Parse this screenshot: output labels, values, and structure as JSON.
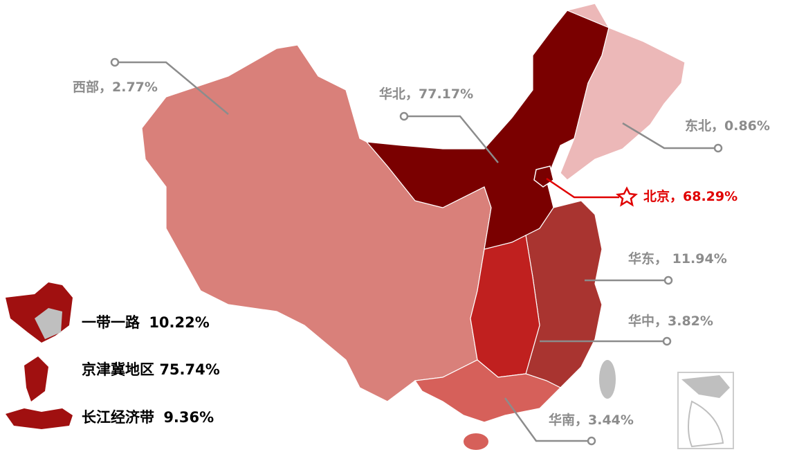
{
  "callouts": [
    {
      "text": "西部，2.77%"
    },
    {
      "text": "华北，77.17%"
    },
    {
      "text": "东北，0.86%"
    },
    {
      "text": "北京，68.29%"
    },
    {
      "text": "华东， 11.94%"
    },
    {
      "text": "华中，3.82%"
    },
    {
      "text": "华南，3.44%"
    }
  ],
  "legend": [
    {
      "name": "一带一路",
      "value": "10.22%"
    },
    {
      "name": "京津冀地区",
      "value": "75.74%"
    },
    {
      "name": "长江经济带",
      "value": "9.36%"
    }
  ]
}
